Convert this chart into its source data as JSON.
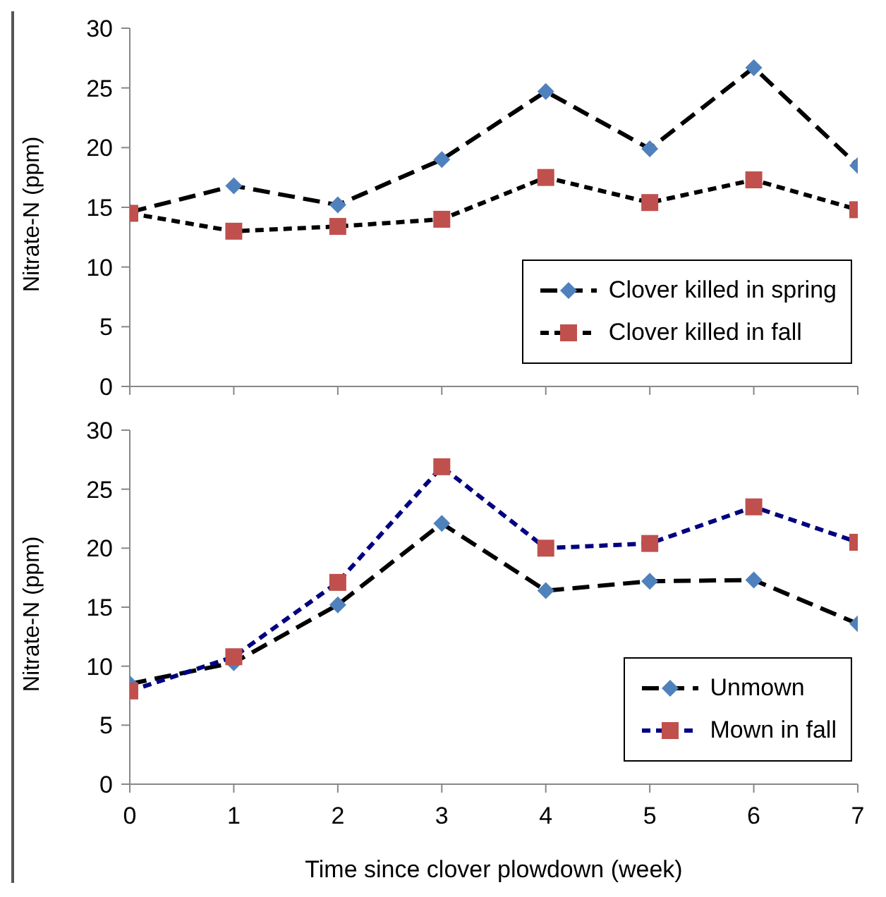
{
  "chart_data": [
    {
      "type": "line",
      "xlabel": null,
      "ylabel": "Nitrate-N (ppm)",
      "x": [
        0,
        1,
        2,
        3,
        4,
        5,
        6,
        7
      ],
      "xlim": [
        0,
        7
      ],
      "xticks": [
        0,
        1,
        2,
        3,
        4,
        5,
        6,
        7
      ],
      "ylim": [
        0,
        30
      ],
      "yticks": [
        0,
        5,
        10,
        15,
        20,
        25,
        30
      ],
      "tick_labels": "y",
      "grid": false,
      "legend": "bottom right",
      "series": [
        {
          "name": "Clover killed in spring",
          "color": "#000000",
          "colors": [
            "#4f81bd",
            "#4f81bd",
            "#4f81bd",
            "#4f81bd",
            "#4f81bd",
            "#4f81bd",
            "#4f81bd",
            "#4f81bd"
          ],
          "marker": "diamond",
          "line_style": "dashed",
          "values": [
            14.6,
            16.8,
            15.2,
            19.0,
            24.7,
            19.9,
            26.7,
            18.5
          ]
        },
        {
          "name": "Clover killed in fall",
          "color": "#000000",
          "colors": [
            "#c0504d",
            "#c0504d",
            "#c0504d",
            "#c0504d",
            "#c0504d",
            "#c0504d",
            "#c0504d",
            "#c0504d"
          ],
          "marker": "square",
          "line_style": "dotted",
          "values": [
            14.5,
            13.0,
            13.4,
            14.0,
            17.5,
            15.4,
            17.3,
            14.8
          ]
        }
      ]
    },
    {
      "type": "line",
      "xlabel": "Time since clover plowdown (week)",
      "ylabel": "Nitrate-N (ppm)",
      "x": [
        0,
        1,
        2,
        3,
        4,
        5,
        6,
        7
      ],
      "xlim": [
        0,
        7
      ],
      "xticks": [
        0,
        1,
        2,
        3,
        4,
        5,
        6,
        7
      ],
      "ylim": [
        0,
        30
      ],
      "yticks": [
        0,
        5,
        10,
        15,
        20,
        25,
        30
      ],
      "grid": false,
      "legend": "bottom right",
      "series": [
        {
          "name": "Unmown",
          "color": "#000000",
          "colors": [
            "#4f81bd",
            "#4f81bd",
            "#4f81bd",
            "#4f81bd",
            "#4f81bd",
            "#4f81bd",
            "#4f81bd",
            "#4f81bd"
          ],
          "marker": "diamond",
          "line_style": "dashed",
          "values": [
            8.5,
            10.3,
            15.2,
            22.1,
            16.4,
            17.2,
            17.3,
            13.6
          ]
        },
        {
          "name": "Mown in fall",
          "color": "#000080",
          "colors": [
            "#c0504d",
            "#c0504d",
            "#c0504d",
            "#c0504d",
            "#c0504d",
            "#c0504d",
            "#c0504d",
            "#c0504d"
          ],
          "marker": "square",
          "line_style": "dotted",
          "values": [
            7.9,
            10.8,
            17.1,
            26.9,
            20.0,
            20.4,
            23.5,
            20.5
          ]
        }
      ]
    }
  ]
}
